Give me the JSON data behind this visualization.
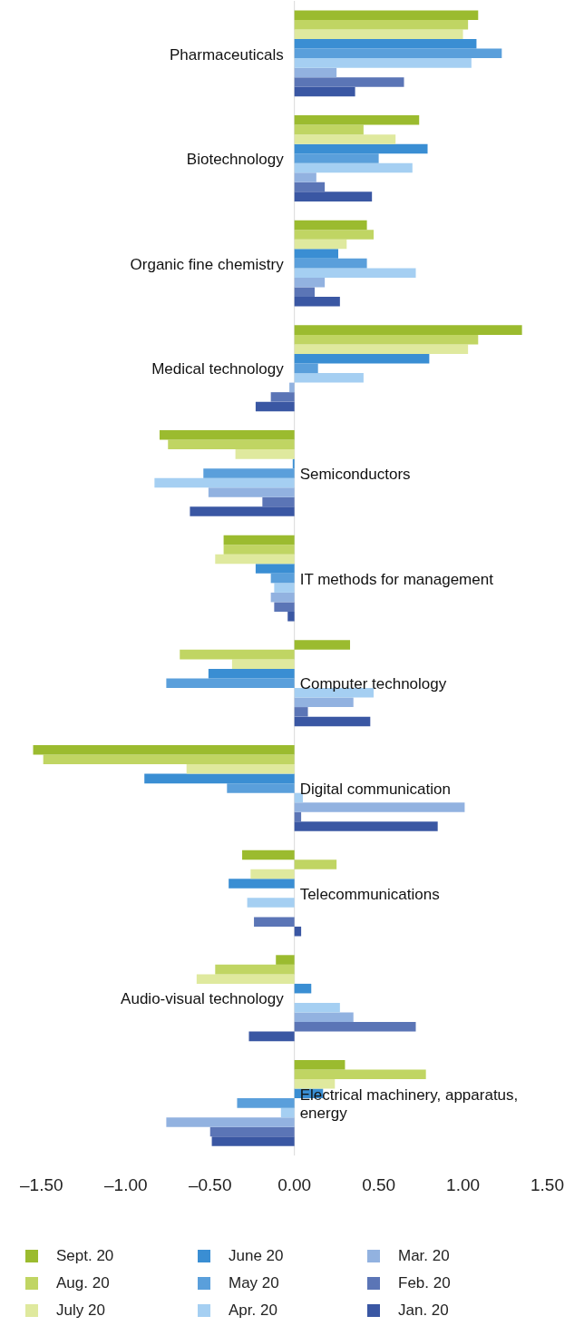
{
  "chart_data": {
    "type": "bar",
    "orientation": "horizontal",
    "legend": "bottom",
    "categories": [
      "Pharmaceuticals",
      "Biotechnology",
      "Organic fine chemistry",
      "Medical technology",
      "Semiconductors",
      "IT methods for management",
      "Computer technology",
      "Digital communication",
      "Telecommunications",
      "Audio-visual technology",
      "Electrical machinery, apparatus, energy"
    ],
    "xlim": [
      -1.56,
      1.5
    ],
    "xticks": [
      {
        "value": -1.5,
        "label": "–1.50"
      },
      {
        "value": -1,
        "label": "–1.00"
      },
      {
        "value": -0.5,
        "label": "–0.50"
      },
      {
        "value": 0,
        "label": "0.00"
      },
      {
        "value": 0.5,
        "label": "0.50"
      },
      {
        "value": 1,
        "label": "1.00"
      },
      {
        "value": 1.5,
        "label": "1.50"
      }
    ],
    "series": [
      {
        "name": "Sept. 20",
        "color": "#9bbb2f",
        "values": [
          1.09,
          0.74,
          0.43,
          1.35,
          -0.8,
          -0.42,
          0.33,
          -1.55,
          -0.31,
          -0.11,
          0.3
        ]
      },
      {
        "name": "Aug. 20",
        "color": "#c0d563",
        "values": [
          1.03,
          0.41,
          0.47,
          1.09,
          -0.75,
          -0.42,
          -0.68,
          -1.49,
          0.25,
          -0.47,
          0.78
        ]
      },
      {
        "name": "July 20",
        "color": "#dfe99e",
        "values": [
          1.0,
          0.6,
          0.31,
          1.03,
          -0.35,
          -0.47,
          -0.37,
          -0.64,
          -0.26,
          -0.58,
          0.24
        ]
      },
      {
        "name": "June 20",
        "color": "#3a8ed3",
        "values": [
          1.08,
          0.79,
          0.26,
          0.8,
          -0.01,
          -0.23,
          -0.51,
          -0.89,
          -0.39,
          0.1,
          0.17
        ]
      },
      {
        "name": "May 20",
        "color": "#5a9fdb",
        "values": [
          1.23,
          0.5,
          0.43,
          0.14,
          -0.54,
          -0.14,
          -0.76,
          -0.4,
          0,
          0,
          -0.34
        ]
      },
      {
        "name": "Apr. 20",
        "color": "#a5cff2",
        "values": [
          1.05,
          0.7,
          0.72,
          0.41,
          -0.83,
          -0.12,
          0.47,
          0.05,
          -0.28,
          0.27,
          -0.08
        ]
      },
      {
        "name": "Mar. 20",
        "color": "#92b2e0",
        "values": [
          0.25,
          0.13,
          0.18,
          -0.03,
          -0.51,
          -0.14,
          0.35,
          1.01,
          0,
          0.35,
          -0.76
        ]
      },
      {
        "name": "Feb. 20",
        "color": "#5b75b6",
        "values": [
          0.65,
          0.18,
          0.12,
          -0.14,
          -0.19,
          -0.12,
          0.08,
          0.04,
          -0.24,
          0.72,
          -0.5
        ]
      },
      {
        "name": "Jan. 20",
        "color": "#3a57a3",
        "values": [
          0.36,
          0.46,
          0.27,
          -0.23,
          -0.62,
          -0.04,
          0.45,
          0.85,
          0.04,
          -0.27,
          -0.49
        ]
      }
    ]
  }
}
